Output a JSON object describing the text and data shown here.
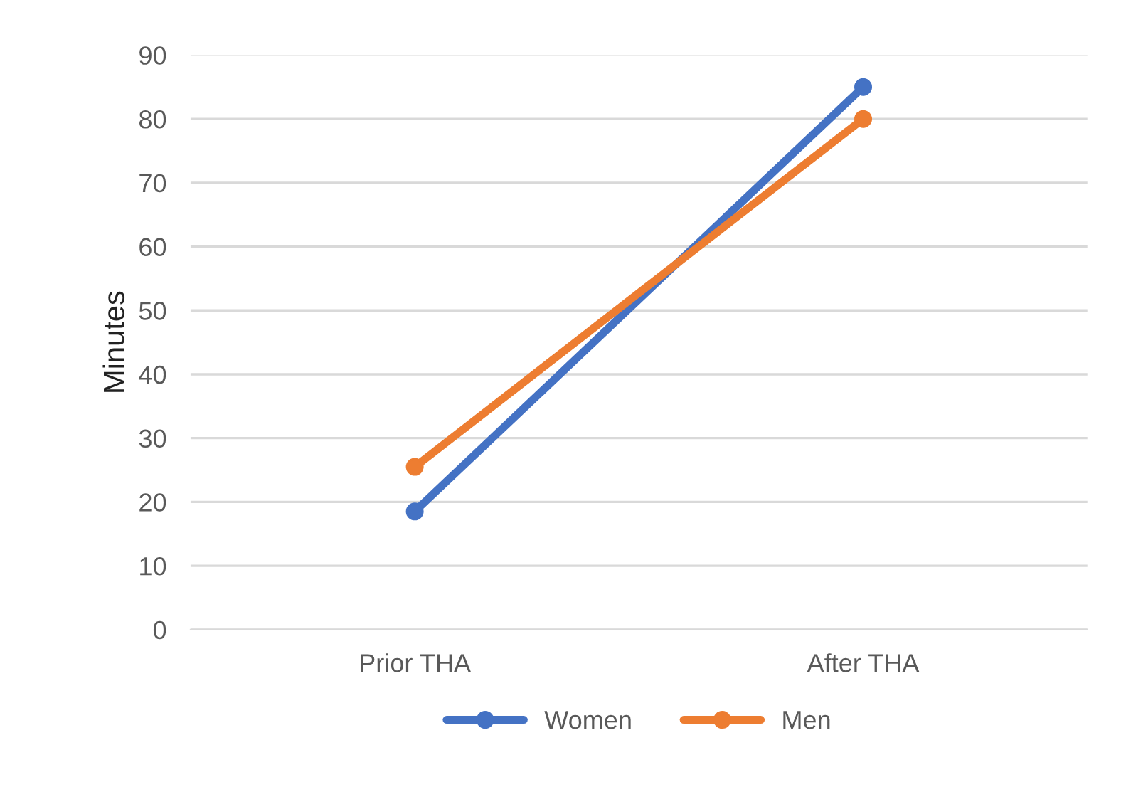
{
  "chart_data": {
    "type": "line",
    "ylabel": "Minutes",
    "categories": [
      "Prior THA",
      "After THA"
    ],
    "series": [
      {
        "name": "Women",
        "color": "#4472c4",
        "values": [
          18.5,
          85
        ]
      },
      {
        "name": "Men",
        "color": "#ed7d31",
        "values": [
          25.5,
          80
        ]
      }
    ],
    "ylim": [
      0,
      90
    ],
    "yticks": [
      0,
      10,
      20,
      30,
      40,
      50,
      60,
      70,
      80,
      90
    ],
    "grid": "y",
    "legend": "bottom",
    "marker": "circle",
    "line_style": "solid"
  }
}
